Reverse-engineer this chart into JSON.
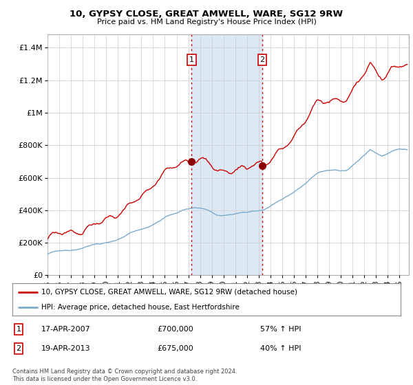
{
  "title": "10, GYPSY CLOSE, GREAT AMWELL, WARE, SG12 9RW",
  "subtitle": "Price paid vs. HM Land Registry's House Price Index (HPI)",
  "ylabel_ticks": [
    "£0",
    "£200K",
    "£400K",
    "£600K",
    "£800K",
    "£1M",
    "£1.2M",
    "£1.4M"
  ],
  "ylabel_values": [
    0,
    200000,
    400000,
    600000,
    800000,
    1000000,
    1200000,
    1400000
  ],
  "ylim": [
    0,
    1480000
  ],
  "xlim_start": 1995.0,
  "xlim_end": 2025.8,
  "sale1": {
    "date_num": 2007.29,
    "price": 700000,
    "label": "1",
    "date_str": "17-APR-2007",
    "pct": "57% ↑ HPI"
  },
  "sale2": {
    "date_num": 2013.3,
    "price": 675000,
    "label": "2",
    "date_str": "19-APR-2013",
    "pct": "40% ↑ HPI"
  },
  "shaded_region": [
    2007.29,
    2013.3
  ],
  "legend_line1": "10, GYPSY CLOSE, GREAT AMWELL, WARE, SG12 9RW (detached house)",
  "legend_line2": "HPI: Average price, detached house, East Hertfordshire",
  "footnote": "Contains HM Land Registry data © Crown copyright and database right 2024.\nThis data is licensed under the Open Government Licence v3.0.",
  "line_color_red": "#cc0000",
  "line_color_blue": "#7aabcf",
  "shade_color": "#dce9f5",
  "grid_color": "#cccccc",
  "background_color": "#ffffff",
  "x_tick_years": [
    1995,
    1996,
    1997,
    1998,
    1999,
    2000,
    2001,
    2002,
    2003,
    2004,
    2005,
    2006,
    2007,
    2008,
    2009,
    2010,
    2011,
    2012,
    2013,
    2014,
    2015,
    2016,
    2017,
    2018,
    2019,
    2020,
    2021,
    2022,
    2023,
    2024,
    2025
  ]
}
